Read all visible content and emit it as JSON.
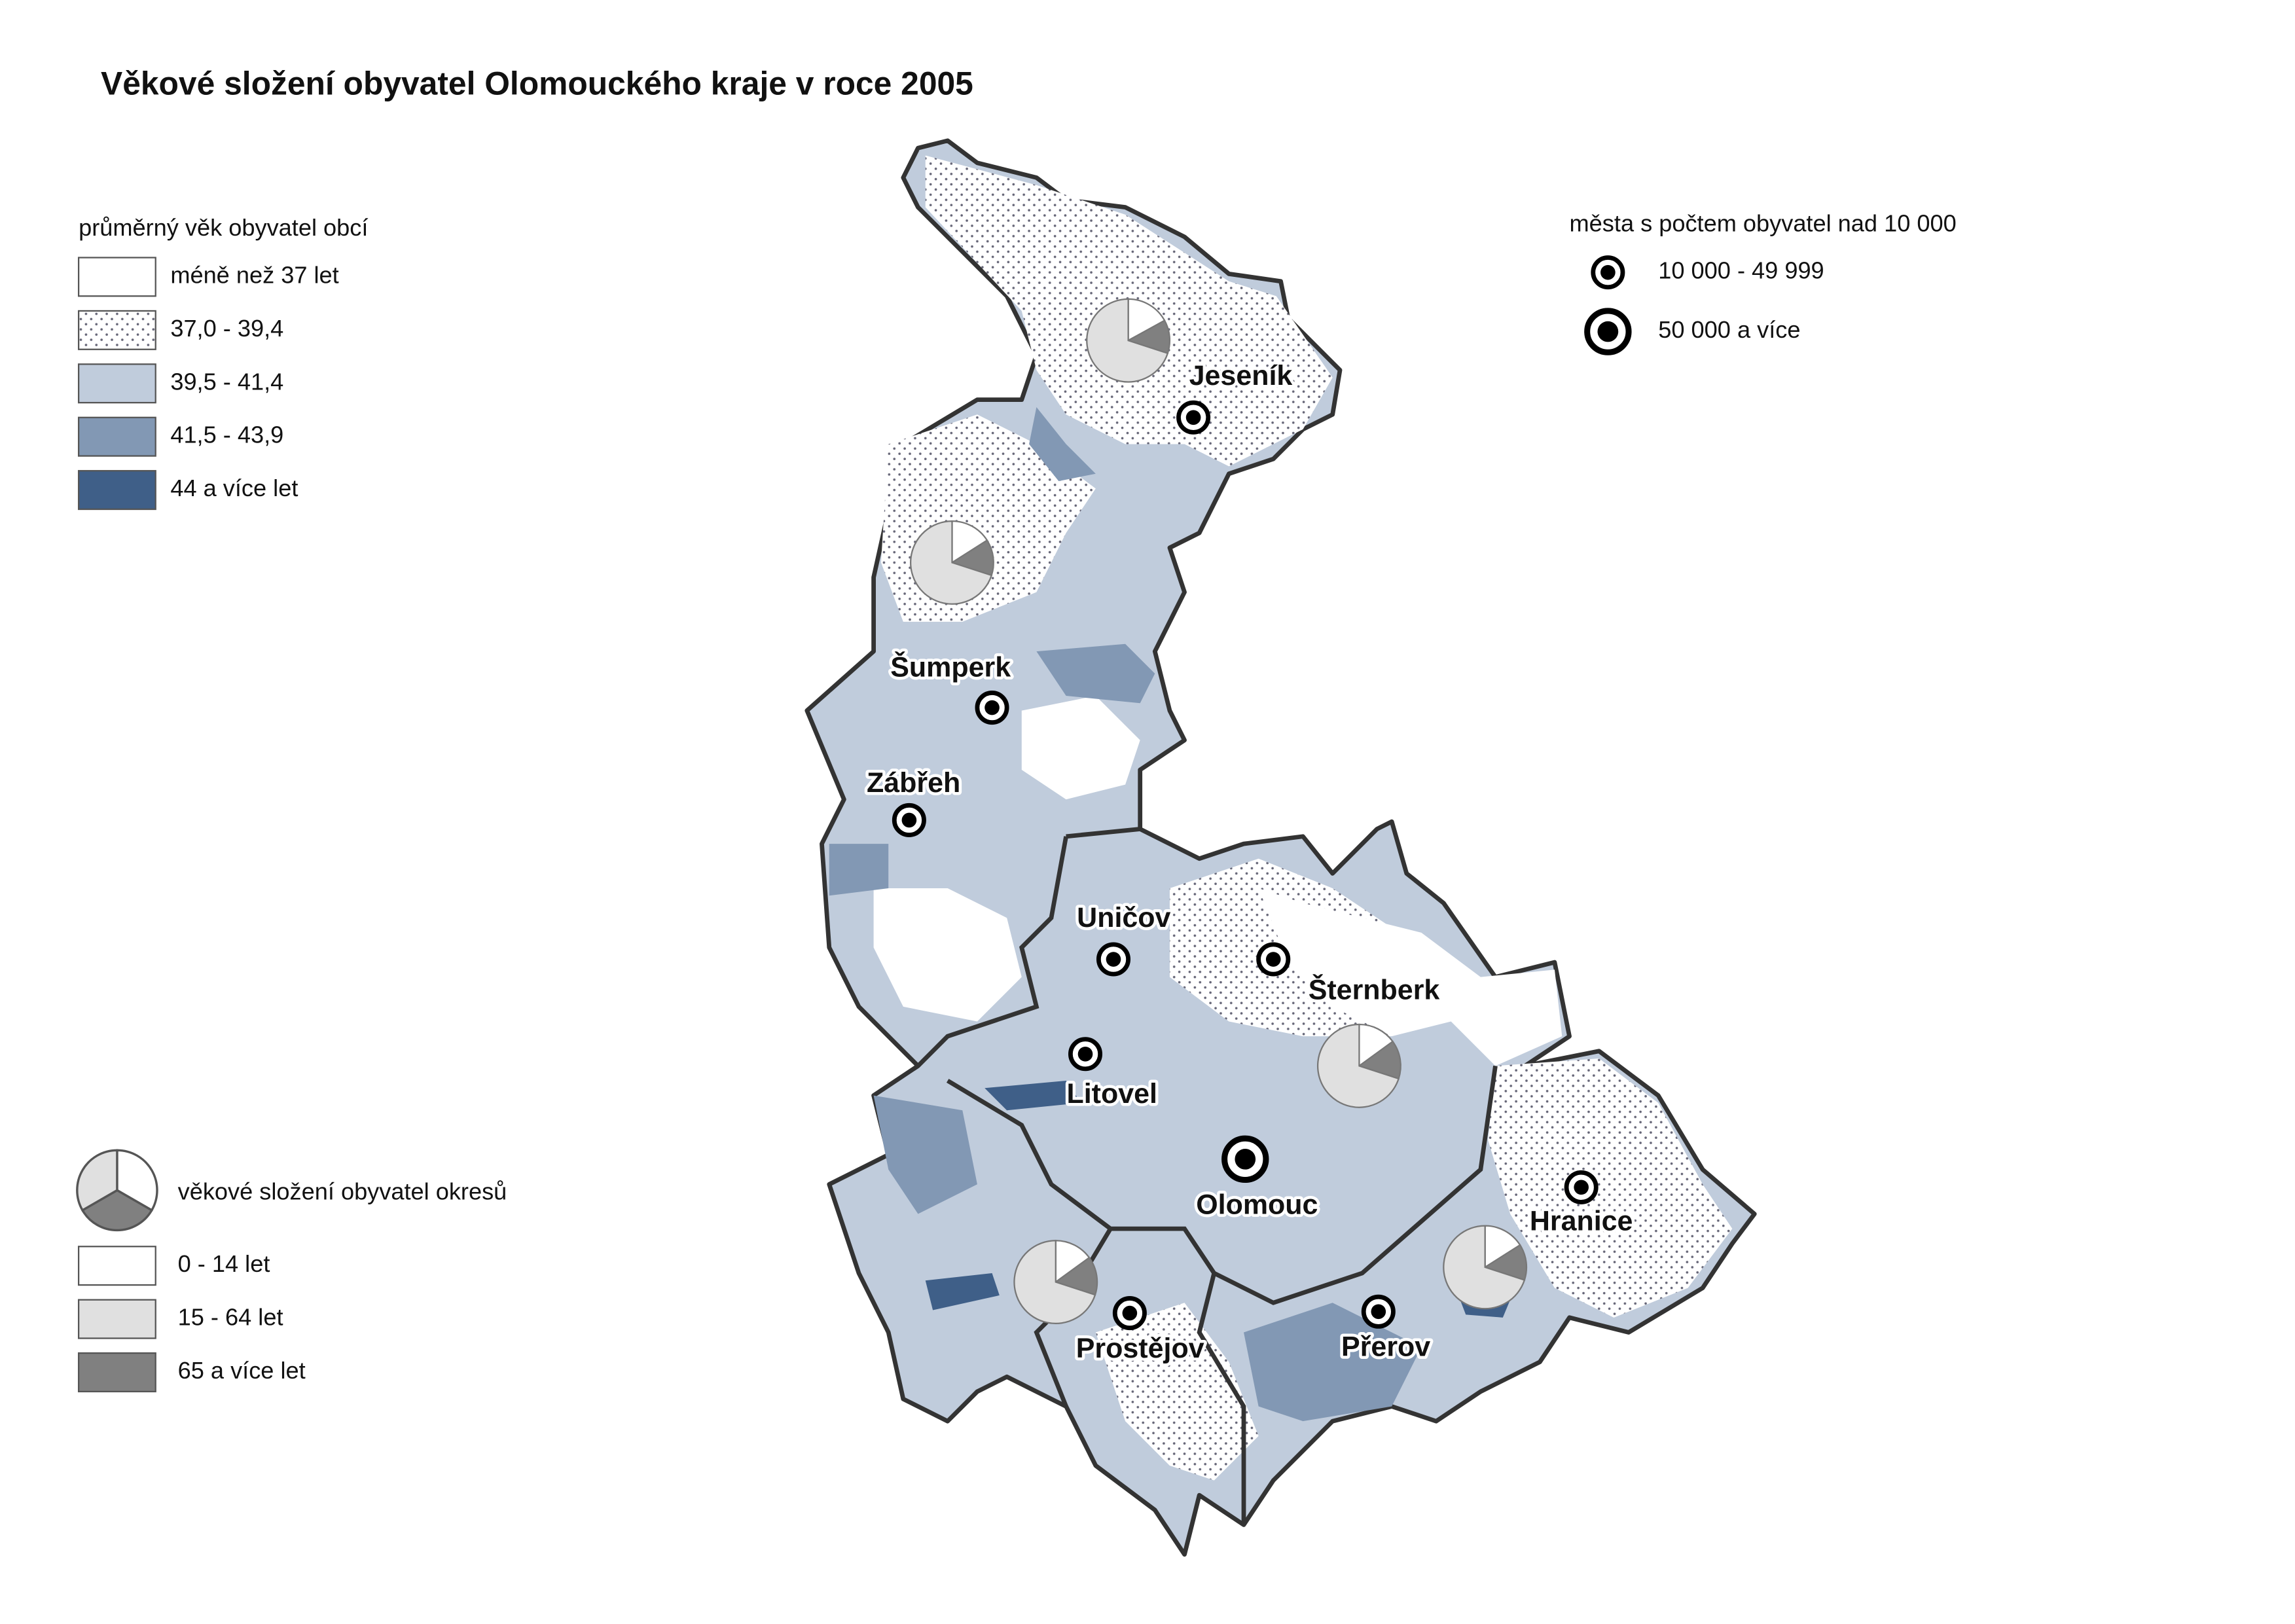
{
  "title": "Věkové složení obyvatel Olomouckého kraje v roce 2005",
  "age_legend": {
    "title": "průměrný věk obyvatel obcí",
    "classes": [
      {
        "label": "méně než 37 let",
        "color": "#ffffff"
      },
      {
        "label": "37,0 - 39,4",
        "color": "#ffffff",
        "pattern": "dots"
      },
      {
        "label": "39,5 - 41,4",
        "color": "#c0ccdc"
      },
      {
        "label": "41,5 - 43,9",
        "color": "#8298b4"
      },
      {
        "label": "44 a více let",
        "color": "#3f5f88"
      }
    ]
  },
  "city_legend": {
    "title": "města s počtem obyvatel nad 10 000",
    "classes": [
      {
        "label": "10 000 - 49 999"
      },
      {
        "label": "50 000 a více"
      }
    ]
  },
  "district_legend": {
    "title": "věkové složení obyvatel okresů",
    "classes": [
      {
        "label": "0 - 14 let",
        "color": "#ffffff"
      },
      {
        "label": "15 - 64 let",
        "color": "#e0e0e0"
      },
      {
        "label": "65 a více let",
        "color": "#808080"
      }
    ]
  },
  "cities": [
    {
      "name": "Jeseník",
      "size_class": 0
    },
    {
      "name": "Šumperk",
      "size_class": 0
    },
    {
      "name": "Zábřeh",
      "size_class": 0
    },
    {
      "name": "Uničov",
      "size_class": 0
    },
    {
      "name": "Šternberk",
      "size_class": 0
    },
    {
      "name": "Litovel",
      "size_class": 0
    },
    {
      "name": "Olomouc",
      "size_class": 1
    },
    {
      "name": "Hranice",
      "size_class": 0
    },
    {
      "name": "Prostějov",
      "size_class": 0
    },
    {
      "name": "Přerov",
      "size_class": 0
    }
  ],
  "districts": [
    {
      "shares": [
        17,
        70,
        13
      ]
    },
    {
      "shares": [
        16,
        70,
        14
      ]
    },
    {
      "shares": [
        15,
        70,
        15
      ]
    },
    {
      "shares": [
        15,
        70,
        15
      ]
    },
    {
      "shares": [
        16,
        70,
        14
      ]
    }
  ]
}
